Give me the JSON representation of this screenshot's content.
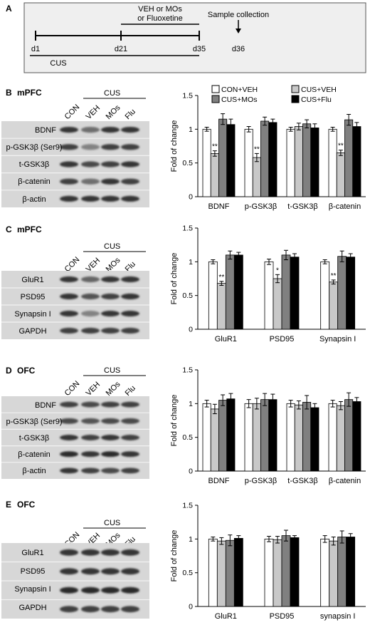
{
  "panel_a": {
    "letter": "A",
    "labels": {
      "d1": "d1",
      "d21": "d21",
      "d35": "d35",
      "d36": "d36"
    },
    "treatment_line1": "VEH or MOs",
    "treatment_line2": "or Fluoxetine",
    "sample_collection": "Sample collection",
    "cus": "CUS"
  },
  "panels": [
    {
      "letter": "B",
      "region": "mPFC",
      "cus_label": "CUS",
      "lanes": [
        "CON",
        "VEH",
        "MOs",
        "Flu"
      ],
      "blot_rows": [
        "BDNF",
        "p-GSK3β (Ser9)",
        "t-GSK3β",
        "β-catenin",
        "β-actin"
      ]
    },
    {
      "letter": "C",
      "region": "mPFC",
      "cus_label": "CUS",
      "lanes": [
        "CON",
        "VEH",
        "MOs",
        "Flu"
      ],
      "blot_rows": [
        "GluR1",
        "PSD95",
        "Synapsin I",
        "GAPDH"
      ]
    },
    {
      "letter": "D",
      "region": "OFC",
      "cus_label": "CUS",
      "lanes": [
        "CON",
        "VEH",
        "MOs",
        "Flu"
      ],
      "blot_rows": [
        "BDNF",
        "p-GSK3β (Ser9)",
        "t-GSK3β",
        "β-catenin",
        "β-actin"
      ]
    },
    {
      "letter": "E",
      "region": "OFC",
      "cus_label": "CUS",
      "lanes": [
        "CON",
        "VEH",
        "MOs",
        "Flu"
      ],
      "blot_rows": [
        "GluR1",
        "PSD95",
        "Synapsin I",
        "GAPDH"
      ]
    }
  ],
  "legend": [
    {
      "name": "CON+VEH",
      "color": "#ffffff"
    },
    {
      "name": "CUS+VEH",
      "color": "#c8c8c8"
    },
    {
      "name": "CUS+MOs",
      "color": "#808080"
    },
    {
      "name": "CUS+Flu",
      "color": "#000000"
    }
  ],
  "chart_data": [
    {
      "type": "bar",
      "ylabel": "Fold of change",
      "ylim": [
        0,
        1.5
      ],
      "yticks": [
        "0",
        "0.5",
        "1",
        "1.5"
      ],
      "categories": [
        "BDNF",
        "p-GSK3β",
        "t-GSK3β",
        "β-catenin"
      ],
      "legend": "top",
      "series": [
        {
          "name": "CON+VEH",
          "values": [
            1.0,
            1.0,
            1.0,
            1.0
          ],
          "errors": [
            0.03,
            0.04,
            0.03,
            0.03
          ]
        },
        {
          "name": "CUS+VEH",
          "values": [
            0.64,
            0.58,
            1.04,
            0.65
          ],
          "errors": [
            0.04,
            0.06,
            0.05,
            0.04
          ]
        },
        {
          "name": "CUS+MOs",
          "values": [
            1.15,
            1.12,
            1.08,
            1.14
          ],
          "errors": [
            0.08,
            0.06,
            0.06,
            0.08
          ]
        },
        {
          "name": "CUS+Flu",
          "values": [
            1.07,
            1.1,
            1.02,
            1.04
          ],
          "errors": [
            0.08,
            0.05,
            0.06,
            0.06
          ]
        }
      ],
      "annotations": [
        {
          "category": "BDNF",
          "series": "CUS+VEH",
          "text": "**"
        },
        {
          "category": "p-GSK3β",
          "series": "CUS+VEH",
          "text": "**"
        },
        {
          "category": "β-catenin",
          "series": "CUS+VEH",
          "text": "**"
        }
      ]
    },
    {
      "type": "bar",
      "ylabel": "Fold of change",
      "ylim": [
        0,
        1.5
      ],
      "yticks": [
        "0",
        "0.5",
        "1",
        "1.5"
      ],
      "categories": [
        "GluR1",
        "PSD95",
        "Synapsin I"
      ],
      "series": [
        {
          "name": "CON+VEH",
          "values": [
            1.0,
            1.0,
            1.0
          ],
          "errors": [
            0.03,
            0.04,
            0.03
          ]
        },
        {
          "name": "CUS+VEH",
          "values": [
            0.68,
            0.75,
            0.7
          ],
          "errors": [
            0.03,
            0.06,
            0.03
          ]
        },
        {
          "name": "CUS+MOs",
          "values": [
            1.1,
            1.1,
            1.08
          ],
          "errors": [
            0.06,
            0.07,
            0.08
          ]
        },
        {
          "name": "CUS+Flu",
          "values": [
            1.1,
            1.07,
            1.07
          ],
          "errors": [
            0.04,
            0.05,
            0.05
          ]
        }
      ],
      "annotations": [
        {
          "category": "GluR1",
          "series": "CUS+VEH",
          "text": "**"
        },
        {
          "category": "PSD95",
          "series": "CUS+VEH",
          "text": "*"
        },
        {
          "category": "Synapsin I",
          "series": "CUS+VEH",
          "text": "**"
        }
      ]
    },
    {
      "type": "bar",
      "ylabel": "Fold of change",
      "ylim": [
        0,
        1.5
      ],
      "yticks": [
        "0",
        "0.5",
        "1",
        "1.5"
      ],
      "categories": [
        "BDNF",
        "p-GSK3β",
        "t-GSK3β",
        "β-catenin"
      ],
      "series": [
        {
          "name": "CON+VEH",
          "values": [
            1.0,
            1.0,
            1.0,
            1.0
          ],
          "errors": [
            0.05,
            0.06,
            0.05,
            0.05
          ]
        },
        {
          "name": "CUS+VEH",
          "values": [
            0.92,
            1.0,
            0.98,
            0.97
          ],
          "errors": [
            0.07,
            0.08,
            0.06,
            0.06
          ]
        },
        {
          "name": "CUS+MOs",
          "values": [
            1.05,
            1.06,
            1.02,
            1.06
          ],
          "errors": [
            0.08,
            0.09,
            0.1,
            0.1
          ]
        },
        {
          "name": "CUS+Flu",
          "values": [
            1.07,
            1.06,
            0.94,
            1.03
          ],
          "errors": [
            0.08,
            0.08,
            0.06,
            0.06
          ]
        }
      ]
    },
    {
      "type": "bar",
      "ylabel": "Fold of change",
      "ylim": [
        0,
        1.5
      ],
      "yticks": [
        "0",
        "0.5",
        "1",
        "1.5"
      ],
      "categories": [
        "GluR1",
        "PSD95",
        "synapsin I"
      ],
      "series": [
        {
          "name": "CON+VEH",
          "values": [
            1.0,
            1.0,
            1.0
          ],
          "errors": [
            0.03,
            0.04,
            0.05
          ]
        },
        {
          "name": "CUS+VEH",
          "values": [
            0.97,
            0.99,
            0.97
          ],
          "errors": [
            0.05,
            0.05,
            0.06
          ]
        },
        {
          "name": "CUS+MOs",
          "values": [
            0.98,
            1.05,
            1.03
          ],
          "errors": [
            0.08,
            0.08,
            0.09
          ]
        },
        {
          "name": "CUS+Flu",
          "values": [
            1.01,
            1.02,
            1.03
          ],
          "errors": [
            0.04,
            0.03,
            0.05
          ]
        }
      ]
    }
  ]
}
